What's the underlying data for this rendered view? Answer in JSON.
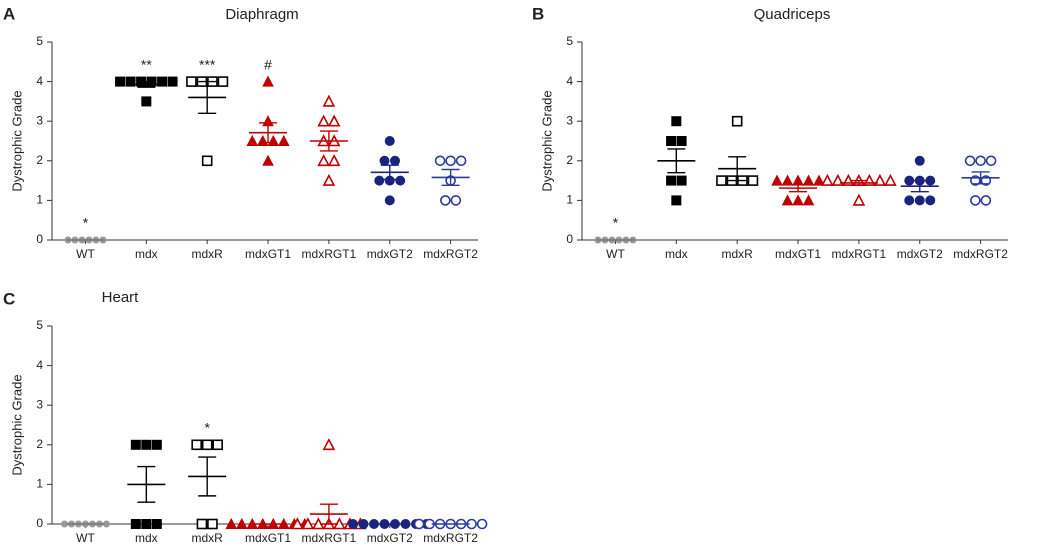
{
  "chart_data": [
    {
      "type": "scatter",
      "panel": "A",
      "title": "Diaphragm",
      "ylabel": "Dystrophic Grade",
      "categories": [
        "WT",
        "mdx",
        "mdxR",
        "mdxGT1",
        "mdxRGT1",
        "mdxGT2",
        "mdxRGT2"
      ],
      "values": [
        [
          0,
          0,
          0,
          0,
          0,
          0
        ],
        [
          4,
          4,
          4,
          4,
          4,
          4,
          3.5
        ],
        [
          4,
          4,
          4,
          4,
          2
        ],
        [
          4,
          3,
          2.5,
          2.5,
          2.5,
          2.5,
          2
        ],
        [
          3.5,
          3,
          3,
          2.5,
          2.5,
          2,
          2,
          1.5
        ],
        [
          2.5,
          2,
          2,
          1.5,
          1.5,
          1.5,
          1
        ],
        [
          2,
          2,
          2,
          1.5,
          1,
          1
        ]
      ],
      "means": [
        0,
        3.93,
        3.6,
        2.71,
        2.5,
        1.71,
        1.58
      ],
      "sems": [
        0,
        0.07,
        0.4,
        0.25,
        0.25,
        0.18,
        0.2
      ],
      "annotations": [
        "*",
        "**",
        "***",
        "#",
        null,
        null,
        null
      ],
      "colors": [
        "#999999",
        "#000000",
        "#000000",
        "#c00000",
        "#c00000",
        "#1a237e",
        "#2a3c9e"
      ],
      "markers": [
        "circle",
        "square",
        "square",
        "triangle",
        "triangle",
        "circle",
        "circle"
      ],
      "filled": [
        true,
        true,
        false,
        true,
        false,
        true,
        false
      ],
      "ylim": [
        0,
        5
      ],
      "yticks": [
        0,
        1,
        2,
        3,
        4,
        5
      ]
    },
    {
      "type": "scatter",
      "panel": "B",
      "title": "Quadriceps",
      "ylabel": "Dystrophic Grade",
      "categories": [
        "WT",
        "mdx",
        "mdxR",
        "mdxGT1",
        "mdxRGT1",
        "mdxGT2",
        "mdxRGT2"
      ],
      "values": [
        [
          0,
          0,
          0,
          0,
          0,
          0
        ],
        [
          3,
          2.5,
          2.5,
          1.5,
          1.5,
          1
        ],
        [
          3,
          1.5,
          1.5,
          1.5,
          1.5
        ],
        [
          1.5,
          1.5,
          1.5,
          1.5,
          1.5,
          1,
          1,
          1
        ],
        [
          1.5,
          1.5,
          1.5,
          1.5,
          1.5,
          1.5,
          1.5,
          1
        ],
        [
          2,
          1.5,
          1.5,
          1.5,
          1,
          1,
          1
        ],
        [
          2,
          2,
          2,
          1.5,
          1.5,
          1,
          1
        ]
      ],
      "means": [
        0,
        2.0,
        1.8,
        1.31,
        1.44,
        1.36,
        1.57
      ],
      "sems": [
        0,
        0.3,
        0.3,
        0.09,
        0.06,
        0.14,
        0.15
      ],
      "annotations": [
        "*",
        null,
        null,
        null,
        null,
        null,
        null
      ],
      "colors": [
        "#999999",
        "#000000",
        "#000000",
        "#c00000",
        "#c00000",
        "#1a237e",
        "#2a3c9e"
      ],
      "markers": [
        "circle",
        "square",
        "square",
        "triangle",
        "triangle",
        "circle",
        "circle"
      ],
      "filled": [
        true,
        true,
        false,
        true,
        false,
        true,
        false
      ],
      "ylim": [
        0,
        5
      ],
      "yticks": [
        0,
        1,
        2,
        3,
        4,
        5
      ]
    },
    {
      "type": "scatter",
      "panel": "C",
      "title": "Heart",
      "ylabel": "Dystrophic Grade",
      "categories": [
        "WT",
        "mdx",
        "mdxR",
        "mdxGT1",
        "mdxRGT1",
        "mdxGT2",
        "mdxRGT2"
      ],
      "values": [
        [
          0,
          0,
          0,
          0,
          0,
          0,
          0
        ],
        [
          2,
          2,
          2,
          0,
          0,
          0
        ],
        [
          2,
          2,
          2,
          0,
          0
        ],
        [
          0,
          0,
          0,
          0,
          0,
          0,
          0,
          0
        ],
        [
          2,
          0,
          0,
          0,
          0,
          0,
          0,
          0
        ],
        [
          0,
          0,
          0,
          0,
          0,
          0,
          0,
          0
        ],
        [
          0,
          0,
          0,
          0,
          0,
          0,
          0
        ]
      ],
      "means": [
        0,
        1.0,
        1.2,
        0,
        0.25,
        0,
        0
      ],
      "sems": [
        0,
        0.45,
        0.49,
        0,
        0.25,
        0,
        0
      ],
      "annotations": [
        null,
        null,
        "*",
        null,
        null,
        null,
        null
      ],
      "colors": [
        "#999999",
        "#000000",
        "#000000",
        "#c00000",
        "#c00000",
        "#1a237e",
        "#2a3c9e"
      ],
      "markers": [
        "circle",
        "square",
        "square",
        "triangle",
        "triangle",
        "circle",
        "circle"
      ],
      "filled": [
        true,
        true,
        false,
        true,
        false,
        true,
        false
      ],
      "ylim": [
        0,
        5
      ],
      "yticks": [
        0,
        1,
        2,
        3,
        4,
        5
      ]
    }
  ]
}
